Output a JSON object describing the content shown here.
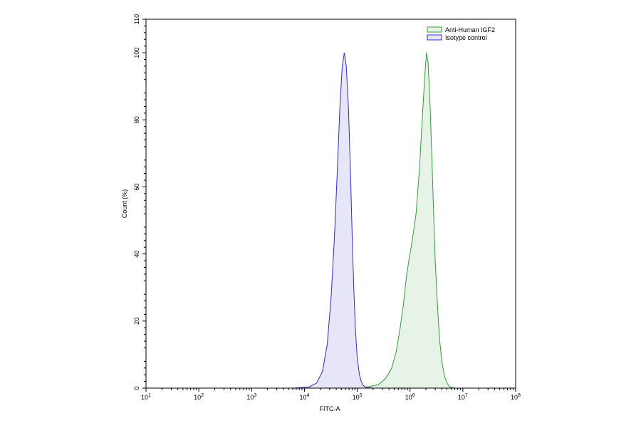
{
  "chart_data": {
    "type": "area",
    "xlabel": "FITC-A",
    "ylabel": "Count (%)",
    "x_scale": "log10",
    "xlim": [
      10.0,
      100000000.0
    ],
    "ylim": [
      0,
      110
    ],
    "x_ticks": [
      {
        "value": 10,
        "base": "10",
        "exp": "1"
      },
      {
        "value": 100,
        "base": "10",
        "exp": "2"
      },
      {
        "value": 1000,
        "base": "10",
        "exp": "3"
      },
      {
        "value": 10000,
        "base": "10",
        "exp": "4"
      },
      {
        "value": 100000,
        "base": "10",
        "exp": "5"
      },
      {
        "value": 1000000,
        "base": "10",
        "exp": "6"
      },
      {
        "value": 10000000,
        "base": "10",
        "exp": "7"
      },
      {
        "value": 100000000,
        "base": "10",
        "exp": "8"
      }
    ],
    "y_ticks": [
      "0",
      "20",
      "40",
      "60",
      "80",
      "100",
      "110"
    ],
    "grid": false,
    "legend_position": "top-right",
    "series": [
      {
        "name": "Anti-Human IGF2",
        "color": "#3a9a3a",
        "fill": "#e6f3e6",
        "x": [
          10,
          10000,
          150000,
          250000,
          350000,
          450000,
          550000,
          650000,
          750000,
          850000,
          950000,
          1100000,
          1300000,
          1500000,
          1700000,
          1900000,
          2050000,
          2200000,
          2400000,
          2600000,
          2800000,
          3000000,
          3300000,
          3600000,
          4000000,
          4500000,
          5000000,
          5500000,
          6000000,
          7000000,
          100000000
        ],
        "y": [
          0,
          0,
          0.3,
          1,
          3,
          6,
          11,
          18,
          25,
          33,
          38,
          44,
          52,
          65,
          80,
          93,
          100,
          97,
          84,
          68,
          52,
          38,
          25,
          15,
          8,
          3.5,
          1.5,
          0.6,
          0.2,
          0,
          0
        ]
      },
      {
        "name": "Isotype control",
        "color": "#2e2ec8",
        "fill": "#e6e6f8",
        "x": [
          10,
          6000,
          12000,
          17000,
          22000,
          27000,
          32000,
          37000,
          42000,
          47000,
          52000,
          57000,
          62000,
          68000,
          74000,
          80000,
          86000,
          92000,
          100000,
          110000,
          120000,
          130000,
          145000,
          170000,
          200000,
          100000000
        ],
        "y": [
          0,
          0,
          0.3,
          1.5,
          5,
          13,
          27,
          45,
          65,
          84,
          96,
          100,
          96,
          84,
          66,
          46,
          30,
          18,
          9,
          4,
          1.8,
          0.8,
          0.3,
          0.1,
          0,
          0
        ]
      }
    ]
  }
}
